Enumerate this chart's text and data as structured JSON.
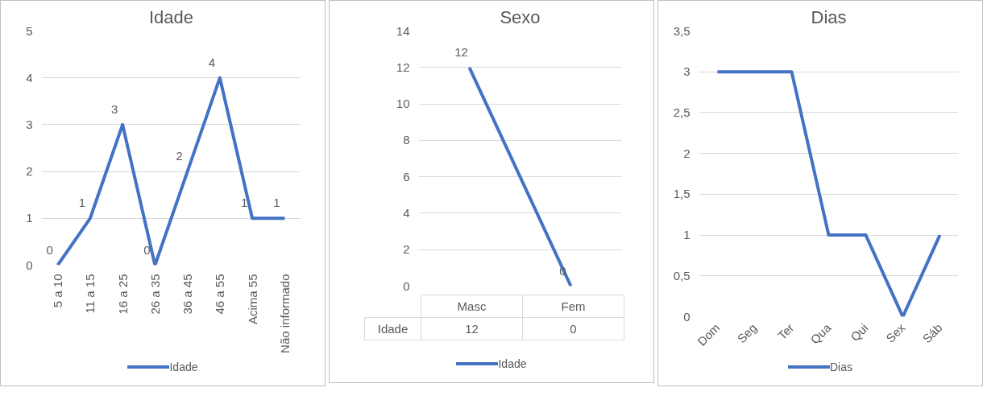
{
  "chart_data": [
    {
      "type": "line",
      "title": "Idade",
      "categories": [
        "5 a 10",
        "11 a 15",
        "16 a 25",
        "26 a 35",
        "36 a 45",
        "46 a 55",
        "Acima 55",
        "Não informado"
      ],
      "series": [
        {
          "name": "Idade",
          "color": "#4472c4",
          "values": [
            0,
            1,
            3,
            0,
            2,
            4,
            1,
            1
          ]
        }
      ],
      "ylim": [
        0,
        5
      ],
      "yticks": [
        0,
        1,
        2,
        3,
        4,
        5
      ],
      "grid": "y",
      "legend": "bottom",
      "data_labels": true
    },
    {
      "type": "line",
      "title": "Sexo",
      "categories": [
        "Masc",
        "Fem"
      ],
      "series": [
        {
          "name": "Idade",
          "color": "#4472c4",
          "values": [
            12,
            0
          ],
          "value_labels": [
            "12",
            "0"
          ]
        }
      ],
      "annotations": [
        "12",
        "0"
      ],
      "ylim": [
        0,
        14
      ],
      "yticks": [
        0,
        2,
        4,
        6,
        8,
        10,
        12,
        14
      ],
      "grid": "y",
      "legend": "bottom",
      "data_labels": true,
      "tick_labels": "y"
    },
    {
      "type": "line",
      "title": "Dias",
      "categories": [
        "Dom",
        "Seg",
        "Ter",
        "Qua",
        "Qui",
        "Sex",
        "Sáb"
      ],
      "series": [
        {
          "name": "Dias",
          "color": "#4472c4",
          "values": [
            3,
            3,
            3,
            1,
            1,
            0,
            1
          ]
        }
      ],
      "ylim": [
        0,
        3.5
      ],
      "yticks": [
        0,
        {
          "value": 0.5,
          "label": "0,5"
        },
        1,
        {
          "value": 1.5,
          "label": "1,5"
        },
        2,
        {
          "value": 2.5,
          "label": "2,5"
        },
        3,
        {
          "value": 3.5,
          "label": "3,5"
        }
      ],
      "grid": "y",
      "legend": "bottom"
    }
  ]
}
